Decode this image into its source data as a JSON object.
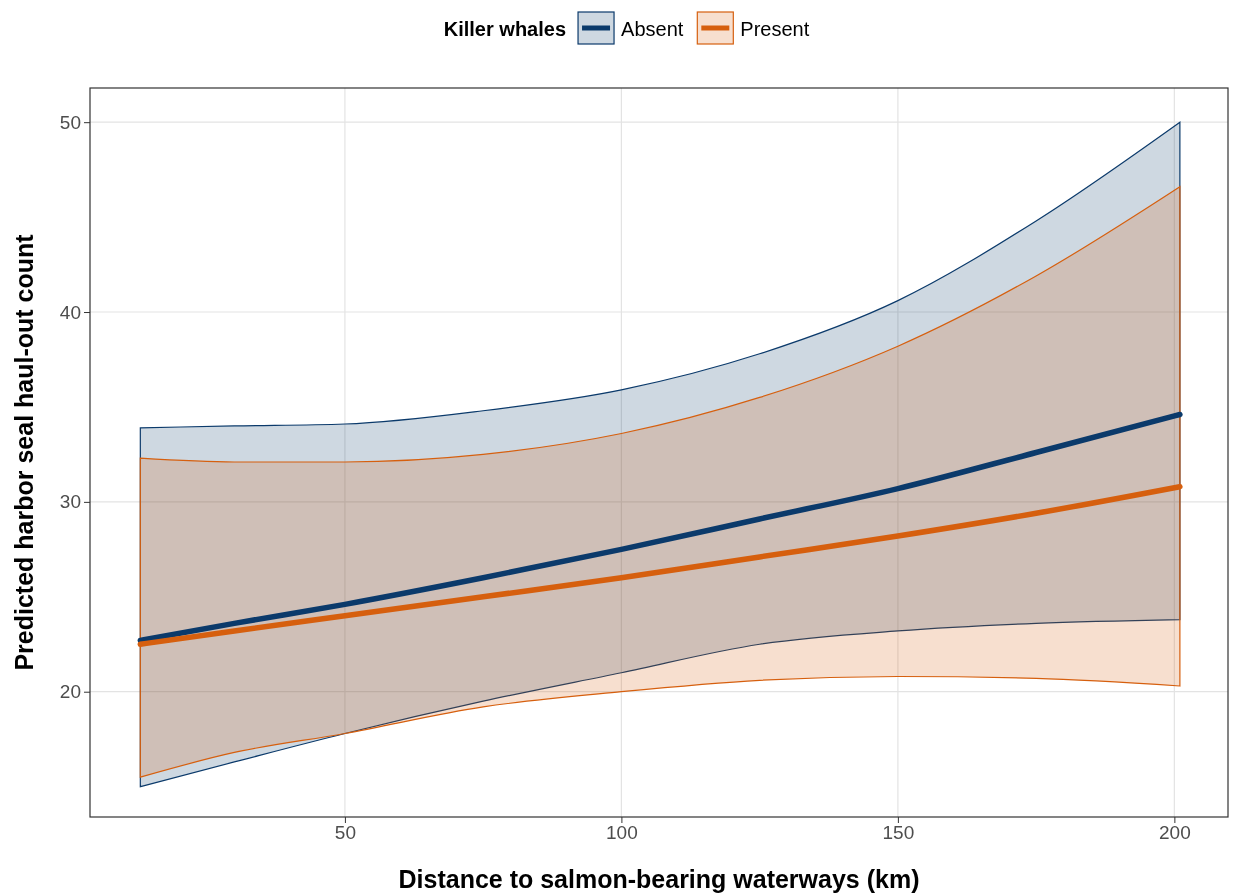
{
  "chart_data": {
    "type": "line",
    "xlabel": "Distance to salmon-bearing waterways (km)",
    "ylabel": "Predicted harbor seal haul-out count",
    "legend_title": "Killer whales",
    "legend": "top",
    "grid": true,
    "xlim": [
      3.9,
      209.7
    ],
    "ylim": [
      13.4,
      51.8
    ],
    "xticks": [
      50,
      100,
      150,
      200
    ],
    "yticks": [
      20,
      30,
      40,
      50
    ],
    "x": [
      13,
      30,
      50,
      75,
      100,
      125,
      150,
      175,
      201
    ],
    "series": [
      {
        "name": "Absent",
        "color": "#0b3a6b",
        "values": [
          22.7,
          23.6,
          24.6,
          26.0,
          27.5,
          29.1,
          30.7,
          32.6,
          34.6
        ],
        "lower": [
          15.0,
          16.3,
          17.8,
          19.5,
          21.0,
          22.5,
          23.2,
          23.6,
          23.8
        ],
        "upper": [
          33.9,
          34.0,
          34.1,
          34.8,
          35.9,
          37.8,
          40.6,
          44.8,
          50.0
        ]
      },
      {
        "name": "Present",
        "color": "#d65f0e",
        "values": [
          22.5,
          23.2,
          24.0,
          25.0,
          26.0,
          27.1,
          28.2,
          29.4,
          30.8
        ],
        "lower": [
          15.5,
          16.8,
          17.8,
          19.2,
          20.0,
          20.6,
          20.8,
          20.7,
          20.3
        ],
        "upper": [
          32.3,
          32.1,
          32.1,
          32.5,
          33.6,
          35.5,
          38.2,
          41.9,
          46.6
        ]
      }
    ]
  }
}
